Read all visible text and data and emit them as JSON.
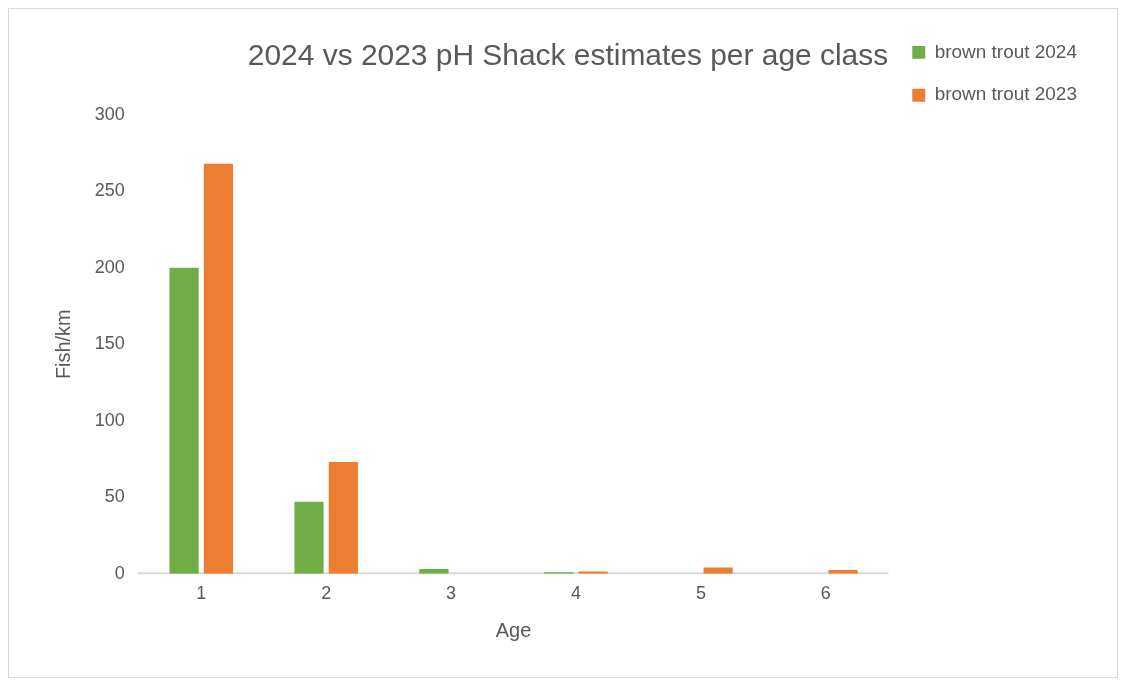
{
  "chart_data": {
    "type": "bar",
    "title": "2024 vs 2023 pH Shack estimates per age class",
    "xlabel": "Age",
    "ylabel": "Fish/km",
    "categories": [
      "1",
      "2",
      "3",
      "4",
      "5",
      "6"
    ],
    "series": [
      {
        "name": "brown trout 2024",
        "color": "#70ad47",
        "values": [
          200,
          47,
          3,
          1,
          0,
          0
        ]
      },
      {
        "name": "brown trout 2023",
        "color": "#ed7d31",
        "values": [
          268,
          73,
          0,
          1.5,
          4,
          2.5
        ]
      }
    ],
    "ylim": [
      0,
      300
    ],
    "yticks": [
      0,
      50,
      100,
      150,
      200,
      250,
      300
    ],
    "grid": false,
    "legend": "top right"
  }
}
